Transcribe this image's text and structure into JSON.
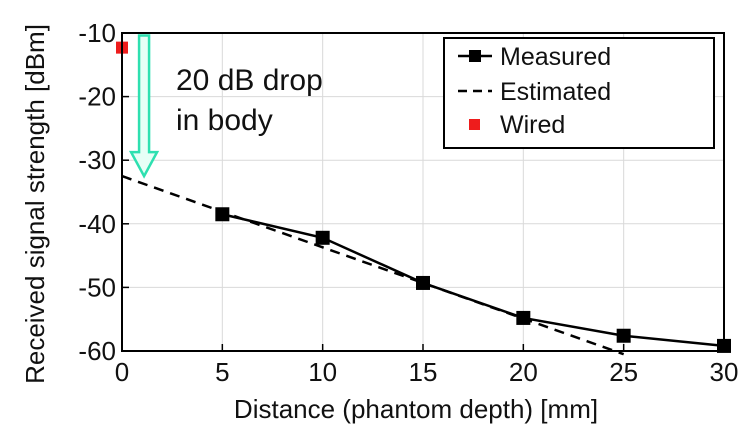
{
  "chart_data": {
    "type": "line",
    "xlabel": "Distance (phantom depth) [mm]",
    "ylabel": "Received signal strength [dBm]",
    "xlim": [
      0,
      30
    ],
    "ylim": [
      -60,
      -10
    ],
    "x_ticks": [
      0,
      5,
      10,
      15,
      20,
      25,
      30
    ],
    "y_ticks": [
      -10,
      -20,
      -30,
      -40,
      -50,
      -60
    ],
    "grid": true,
    "legend_position": "top-right",
    "series": [
      {
        "name": "Measured",
        "style": "solid-square-markers",
        "color": "#000000",
        "x": [
          5,
          10,
          15,
          20,
          25,
          30
        ],
        "y": [
          -38.5,
          -42.2,
          -49.3,
          -54.8,
          -57.6,
          -59.2
        ]
      },
      {
        "name": "Estimated",
        "style": "dashed",
        "color": "#000000",
        "x": [
          0,
          25
        ],
        "y": [
          -32.5,
          -60.5
        ]
      },
      {
        "name": "Wired",
        "style": "marker-only",
        "color": "#ee1c1c",
        "x": [
          0
        ],
        "y": [
          -12.3
        ]
      }
    ],
    "annotation": {
      "lines": [
        "20 dB drop",
        "in body"
      ],
      "arrow_color": "#2ee0b0",
      "arrow_from": {
        "x": 1.1,
        "y": -10.4
      },
      "arrow_to": {
        "x": 1.1,
        "y": -32.5
      }
    }
  }
}
